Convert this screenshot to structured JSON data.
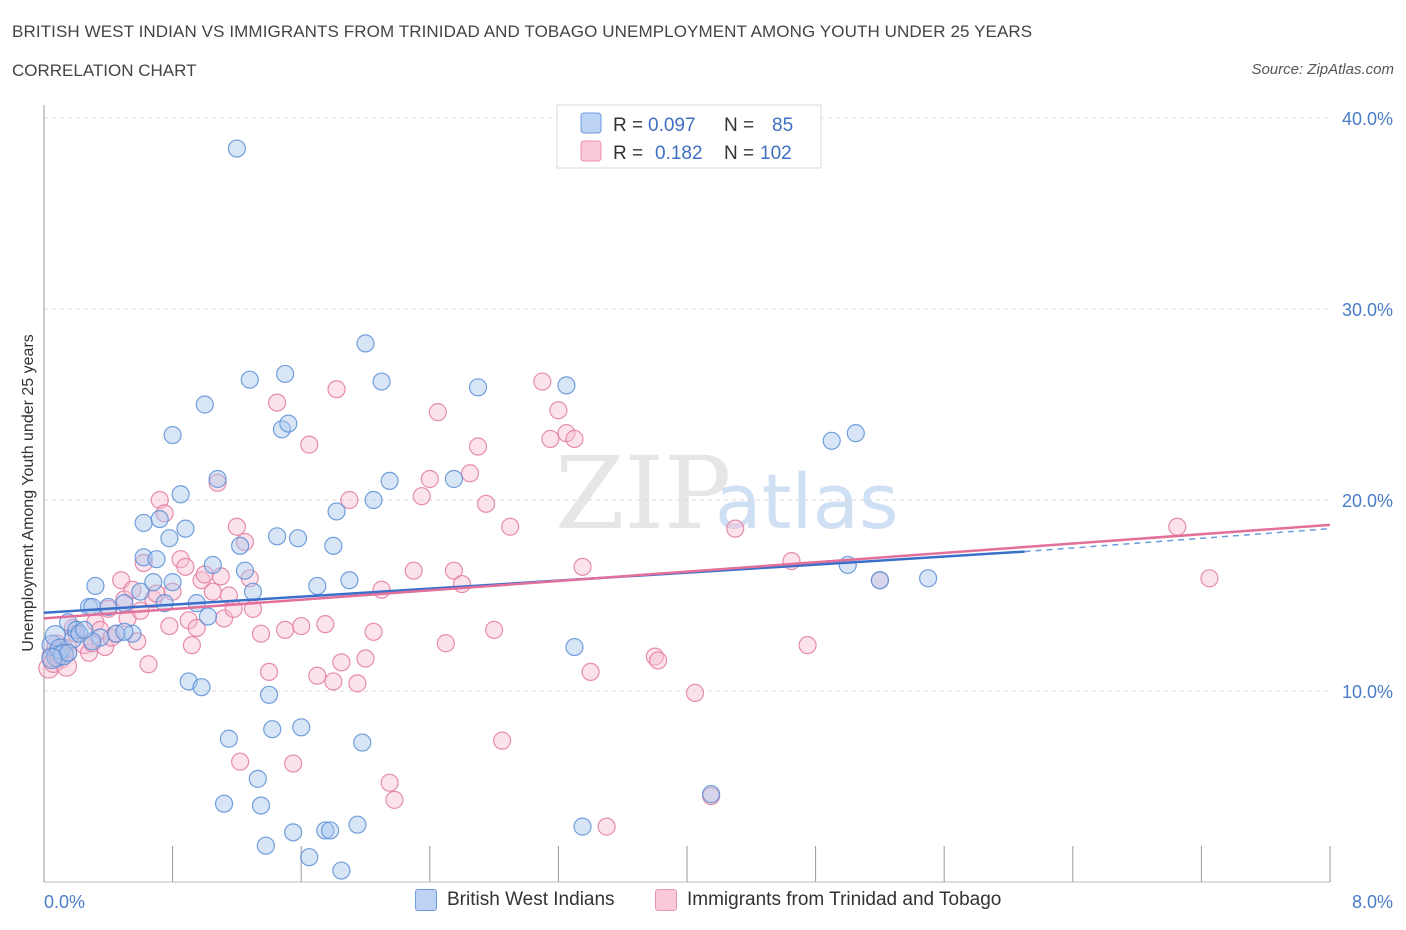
{
  "title": "BRITISH WEST INDIAN VS IMMIGRANTS FROM TRINIDAD AND TOBAGO UNEMPLOYMENT AMONG YOUTH UNDER 25 YEARS",
  "subtitle": "CORRELATION CHART",
  "source": "Source: ZipAtlas.com",
  "watermark": {
    "zip": "ZIP",
    "atlas": "atlas"
  },
  "legend": {
    "rows": [
      {
        "r_label": "R =",
        "r_value": "0.097",
        "n_label": "N =",
        "n_value": "85"
      },
      {
        "r_label": "R =",
        "r_value": "0.182",
        "n_label": "N =",
        "n_value": "102"
      }
    ]
  },
  "bottom_legend": {
    "blue": "British West Indians",
    "pink": "Immigrants from Trinidad and Tobago"
  },
  "colors": {
    "blue": "#5b8fd6",
    "blue_fill": "#a9c6ee",
    "pink": "#e27aa0",
    "pink_fill": "#f6bfd2",
    "tick": "#4a7cc9"
  },
  "chart_data": {
    "type": "scatter",
    "title": "BRITISH WEST INDIAN VS IMMIGRANTS FROM TRINIDAD AND TOBAGO UNEMPLOYMENT AMONG YOUTH UNDER 25 YEARS",
    "xlabel": "",
    "ylabel": "Unemployment Among Youth under 25 years",
    "xlim": [
      0,
      8
    ],
    "ylim": [
      0,
      40
    ],
    "x_tick_labels": [
      "0.0%",
      "8.0%"
    ],
    "y_ticks": [
      10,
      20,
      30,
      40
    ],
    "y_tick_labels": [
      "10.0%",
      "20.0%",
      "30.0%",
      "40.0%"
    ],
    "series": [
      {
        "name": "British West Indians",
        "trend": {
          "x": [
            0,
            6.1
          ],
          "y": [
            14.1,
            17.3
          ],
          "dashed_to": [
            8.0,
            18.5
          ]
        },
        "points": [
          [
            0.05,
            12.4
          ],
          [
            0.07,
            12.9
          ],
          [
            0.08,
            11.8
          ],
          [
            0.1,
            12.2
          ],
          [
            0.12,
            11.9
          ],
          [
            0.15,
            13.6
          ],
          [
            0.18,
            12.7
          ],
          [
            0.2,
            13.2
          ],
          [
            0.22,
            13.0
          ],
          [
            0.28,
            14.4
          ],
          [
            0.3,
            14.4
          ],
          [
            0.32,
            15.5
          ],
          [
            0.35,
            12.8
          ],
          [
            0.4,
            14.4
          ],
          [
            0.45,
            13.0
          ],
          [
            0.5,
            14.6
          ],
          [
            0.55,
            13.0
          ],
          [
            0.6,
            15.2
          ],
          [
            0.62,
            17.0
          ],
          [
            0.62,
            18.8
          ],
          [
            0.68,
            15.7
          ],
          [
            0.7,
            16.9
          ],
          [
            0.72,
            19.0
          ],
          [
            0.75,
            14.6
          ],
          [
            0.78,
            18.0
          ],
          [
            0.8,
            15.7
          ],
          [
            0.8,
            23.4
          ],
          [
            0.85,
            20.3
          ],
          [
            0.88,
            18.5
          ],
          [
            0.9,
            10.5
          ],
          [
            0.95,
            14.6
          ],
          [
            0.98,
            10.2
          ],
          [
            1.0,
            25.0
          ],
          [
            1.02,
            13.9
          ],
          [
            1.05,
            16.6
          ],
          [
            1.08,
            21.1
          ],
          [
            1.12,
            4.1
          ],
          [
            1.15,
            7.5
          ],
          [
            1.2,
            38.4
          ],
          [
            1.22,
            17.6
          ],
          [
            1.25,
            16.3
          ],
          [
            1.28,
            26.3
          ],
          [
            1.3,
            15.2
          ],
          [
            1.33,
            5.4
          ],
          [
            1.35,
            4.0
          ],
          [
            1.38,
            1.9
          ],
          [
            1.4,
            9.8
          ],
          [
            1.42,
            8.0
          ],
          [
            1.45,
            18.1
          ],
          [
            1.48,
            23.7
          ],
          [
            1.5,
            26.6
          ],
          [
            1.52,
            24.0
          ],
          [
            1.55,
            2.6
          ],
          [
            1.58,
            18.0
          ],
          [
            1.6,
            8.1
          ],
          [
            1.65,
            1.3
          ],
          [
            1.7,
            15.5
          ],
          [
            1.75,
            2.7
          ],
          [
            1.78,
            2.7
          ],
          [
            1.8,
            17.6
          ],
          [
            1.82,
            19.4
          ],
          [
            1.85,
            0.6
          ],
          [
            1.9,
            15.8
          ],
          [
            1.95,
            3.0
          ],
          [
            1.98,
            7.3
          ],
          [
            2.0,
            28.2
          ],
          [
            2.05,
            20.0
          ],
          [
            2.1,
            26.2
          ],
          [
            2.15,
            21.0
          ],
          [
            2.55,
            21.1
          ],
          [
            2.7,
            25.9
          ],
          [
            3.25,
            26.0
          ],
          [
            3.3,
            12.3
          ],
          [
            3.35,
            2.9
          ],
          [
            4.15,
            4.6
          ],
          [
            4.9,
            23.1
          ],
          [
            5.0,
            16.6
          ],
          [
            5.05,
            23.5
          ],
          [
            5.2,
            15.8
          ],
          [
            5.5,
            15.9
          ],
          [
            0.5,
            13.1
          ],
          [
            0.3,
            12.6
          ],
          [
            0.25,
            13.2
          ],
          [
            0.15,
            12.0
          ],
          [
            0.05,
            11.7
          ]
        ]
      },
      {
        "name": "Immigrants from Trinidad and Tobago",
        "trend": {
          "x": [
            0,
            8.0
          ],
          "y": [
            13.8,
            18.7
          ]
        },
        "points": [
          [
            0.03,
            11.2
          ],
          [
            0.05,
            11.8
          ],
          [
            0.08,
            12.4
          ],
          [
            0.1,
            11.7
          ],
          [
            0.12,
            12.2
          ],
          [
            0.15,
            12.0
          ],
          [
            0.18,
            13.3
          ],
          [
            0.2,
            13.0
          ],
          [
            0.25,
            12.4
          ],
          [
            0.28,
            12.0
          ],
          [
            0.3,
            12.5
          ],
          [
            0.32,
            13.6
          ],
          [
            0.35,
            13.2
          ],
          [
            0.38,
            12.3
          ],
          [
            0.4,
            14.3
          ],
          [
            0.42,
            12.8
          ],
          [
            0.45,
            13.0
          ],
          [
            0.48,
            15.8
          ],
          [
            0.5,
            14.8
          ],
          [
            0.52,
            13.8
          ],
          [
            0.55,
            15.3
          ],
          [
            0.58,
            12.6
          ],
          [
            0.6,
            14.2
          ],
          [
            0.62,
            16.7
          ],
          [
            0.65,
            11.4
          ],
          [
            0.68,
            14.8
          ],
          [
            0.7,
            15.1
          ],
          [
            0.72,
            20.0
          ],
          [
            0.75,
            19.3
          ],
          [
            0.78,
            13.4
          ],
          [
            0.8,
            15.2
          ],
          [
            0.85,
            16.9
          ],
          [
            0.88,
            16.5
          ],
          [
            0.9,
            13.7
          ],
          [
            0.92,
            12.4
          ],
          [
            0.95,
            13.3
          ],
          [
            0.98,
            15.8
          ],
          [
            1.0,
            16.1
          ],
          [
            1.05,
            15.2
          ],
          [
            1.08,
            20.9
          ],
          [
            1.1,
            16.0
          ],
          [
            1.12,
            13.8
          ],
          [
            1.15,
            15.0
          ],
          [
            1.18,
            14.3
          ],
          [
            1.2,
            18.6
          ],
          [
            1.22,
            6.3
          ],
          [
            1.25,
            17.8
          ],
          [
            1.28,
            15.9
          ],
          [
            1.3,
            14.3
          ],
          [
            1.35,
            13.0
          ],
          [
            1.4,
            11.0
          ],
          [
            1.45,
            25.1
          ],
          [
            1.5,
            13.2
          ],
          [
            1.55,
            6.2
          ],
          [
            1.6,
            13.4
          ],
          [
            1.65,
            22.9
          ],
          [
            1.7,
            10.8
          ],
          [
            1.75,
            13.5
          ],
          [
            1.8,
            10.5
          ],
          [
            1.82,
            25.8
          ],
          [
            1.85,
            11.5
          ],
          [
            1.9,
            20.0
          ],
          [
            1.95,
            10.4
          ],
          [
            2.0,
            11.7
          ],
          [
            2.05,
            13.1
          ],
          [
            2.1,
            15.3
          ],
          [
            2.15,
            5.2
          ],
          [
            2.18,
            4.3
          ],
          [
            2.3,
            16.3
          ],
          [
            2.35,
            20.2
          ],
          [
            2.4,
            21.1
          ],
          [
            2.45,
            24.6
          ],
          [
            2.5,
            12.5
          ],
          [
            2.55,
            16.3
          ],
          [
            2.6,
            15.6
          ],
          [
            2.65,
            21.4
          ],
          [
            2.7,
            22.8
          ],
          [
            2.75,
            19.8
          ],
          [
            2.8,
            13.2
          ],
          [
            2.85,
            7.4
          ],
          [
            2.9,
            18.6
          ],
          [
            3.1,
            26.2
          ],
          [
            3.15,
            23.2
          ],
          [
            3.2,
            24.7
          ],
          [
            3.25,
            23.5
          ],
          [
            3.3,
            23.2
          ],
          [
            3.35,
            16.5
          ],
          [
            3.4,
            11.0
          ],
          [
            3.5,
            2.9
          ],
          [
            3.8,
            11.8
          ],
          [
            3.82,
            11.6
          ],
          [
            4.05,
            9.9
          ],
          [
            4.15,
            4.5
          ],
          [
            4.3,
            18.5
          ],
          [
            4.65,
            16.8
          ],
          [
            4.75,
            12.4
          ],
          [
            5.2,
            15.8
          ],
          [
            7.05,
            18.6
          ],
          [
            7.25,
            15.9
          ],
          [
            0.06,
            11.5
          ],
          [
            0.09,
            12.0
          ],
          [
            0.14,
            11.3
          ]
        ]
      }
    ]
  }
}
